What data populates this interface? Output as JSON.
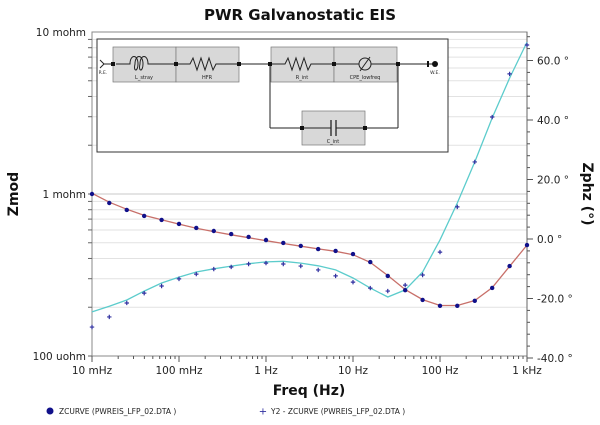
{
  "chart_data": {
    "type": "line",
    "title": "PWR Galvanostatic EIS",
    "xlabel": "Freq (Hz)",
    "ylabel": "Zmod",
    "y2label": "Zphz (°)",
    "x_scale": "log",
    "y_scale": "log",
    "xlim": [
      0.01,
      1000
    ],
    "ylim": [
      0.0001,
      0.01
    ],
    "y2lim": [
      -40,
      70
    ],
    "grid": "horizontal minor",
    "legend_position": "bottom",
    "x_ticks": [
      "10 mHz",
      "100 mHz",
      "1 Hz",
      "10 Hz",
      "100 Hz",
      "1 kHz"
    ],
    "y_ticks": [
      "10 mohm",
      "1 mohm",
      "100 uohm"
    ],
    "y2_ticks": [
      "60.0 °",
      "40.0 °",
      "20.0 °",
      "0.0 °",
      "-20.0 °",
      "-40.0 °"
    ],
    "y2_tick_values": [
      60,
      40,
      20,
      0,
      -20,
      -40
    ],
    "x": [
      0.01,
      0.0158,
      0.0251,
      0.0398,
      0.0631,
      0.1,
      0.158,
      0.251,
      0.398,
      0.631,
      1,
      1.58,
      2.51,
      3.98,
      6.31,
      10,
      15.8,
      25.1,
      39.8,
      63.1,
      100,
      158,
      251,
      398,
      631,
      1000
    ],
    "series": [
      {
        "name": "ZCURVE (PWREIS_LFP_02.DTA )",
        "axis": "left",
        "marker": "dot",
        "color": "#10108a",
        "values": [
          0.001,
          0.00088,
          0.000797,
          0.000732,
          0.000692,
          0.000653,
          0.000617,
          0.000591,
          0.000566,
          0.000543,
          0.00052,
          0.000499,
          0.000478,
          0.000457,
          0.000445,
          0.000426,
          0.00038,
          0.000312,
          0.000255,
          0.000222,
          0.000204,
          0.000204,
          0.000219,
          0.000263,
          0.000359,
          0.000484
        ]
      },
      {
        "name": "Y2 - ZCURVE (PWREIS_LFP_02.DTA )",
        "axis": "right",
        "marker": "plus",
        "color": "#3030a0",
        "values": [
          -29.6,
          -26.2,
          -21.5,
          -18.2,
          -15.8,
          -13.4,
          -11.8,
          -10.1,
          -9.4,
          -8.4,
          -8.1,
          -8.4,
          -9.1,
          -10.4,
          -12.4,
          -14.5,
          -16.5,
          -17.5,
          -15.5,
          -12.1,
          -4.4,
          10.8,
          25.9,
          41.0,
          55.5,
          65.2
        ]
      },
      {
        "axis": "left",
        "marker": "line",
        "color": "#c8706a",
        "values": [
          0.00101,
          0.00089,
          0.000805,
          0.000738,
          0.000694,
          0.000652,
          0.000614,
          0.000586,
          0.00056,
          0.000537,
          0.000515,
          0.000495,
          0.000476,
          0.000458,
          0.000443,
          0.000422,
          0.000378,
          0.000314,
          0.000257,
          0.000223,
          0.000205,
          0.000205,
          0.00022,
          0.000264,
          0.000358,
          0.000484
        ]
      },
      {
        "axis": "right",
        "marker": "line",
        "color": "#5ccccc",
        "values": [
          -24.5,
          -22.6,
          -20.5,
          -17.5,
          -14.8,
          -12.8,
          -11.1,
          -10.0,
          -9.1,
          -8.3,
          -7.7,
          -7.5,
          -8.1,
          -9.0,
          -10.4,
          -13.1,
          -16.5,
          -19.5,
          -17.1,
          -11.1,
          -0.3,
          12.1,
          25.9,
          40.7,
          54.1,
          66.2
        ]
      }
    ]
  },
  "circuit": {
    "re_label": "R.E.",
    "we_label": "W.E.",
    "elements": [
      "L_stray",
      "HFR",
      "R_int",
      "CPE_lowfreq",
      "C_int"
    ]
  },
  "legend": [
    {
      "label": "ZCURVE (PWREIS_LFP_02.DTA )",
      "icon": "dot"
    },
    {
      "label": "Y2 - ZCURVE (PWREIS_LFP_02.DTA )",
      "icon": "plus"
    }
  ]
}
